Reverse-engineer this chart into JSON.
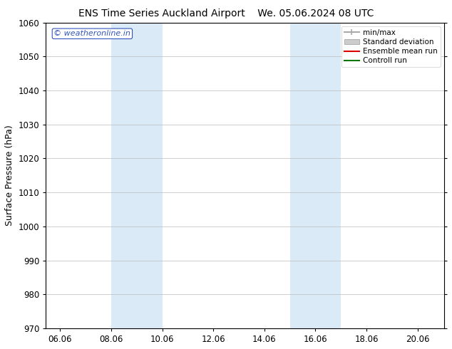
{
  "title_left": "ENS Time Series Auckland Airport",
  "title_right": "We. 05.06.2024 08 UTC",
  "ylabel": "Surface Pressure (hPa)",
  "ylim": [
    970,
    1060
  ],
  "yticks": [
    970,
    980,
    990,
    1000,
    1010,
    1020,
    1030,
    1040,
    1050,
    1060
  ],
  "xlim_start": 5.5,
  "xlim_end": 21.1,
  "xtick_labels": [
    "06.06",
    "08.06",
    "10.06",
    "12.06",
    "14.06",
    "16.06",
    "18.06",
    "20.06"
  ],
  "xtick_positions": [
    6.06,
    8.06,
    10.06,
    12.06,
    14.06,
    16.06,
    18.06,
    20.06
  ],
  "shaded_bands": [
    {
      "x_start": 8.06,
      "x_end": 10.06
    },
    {
      "x_start": 15.06,
      "x_end": 17.06
    }
  ],
  "shaded_color": "#daeaf7",
  "watermark_text": "© weatheronline.in",
  "watermark_color": "#3355bb",
  "legend_entries": [
    {
      "label": "min/max",
      "color": "#aaaaaa",
      "lw": 1.5,
      "style": "minmax"
    },
    {
      "label": "Standard deviation",
      "color": "#cccccc",
      "lw": 8,
      "style": "band"
    },
    {
      "label": "Ensemble mean run",
      "color": "#dd0000",
      "lw": 1.5,
      "style": "line"
    },
    {
      "label": "Controll run",
      "color": "#007700",
      "lw": 1.5,
      "style": "line"
    }
  ],
  "bg_color": "#ffffff",
  "grid_color": "#bbbbbb",
  "title_fontsize": 10,
  "ylabel_fontsize": 9,
  "tick_fontsize": 8.5,
  "legend_fontsize": 7.5,
  "watermark_fontsize": 8
}
